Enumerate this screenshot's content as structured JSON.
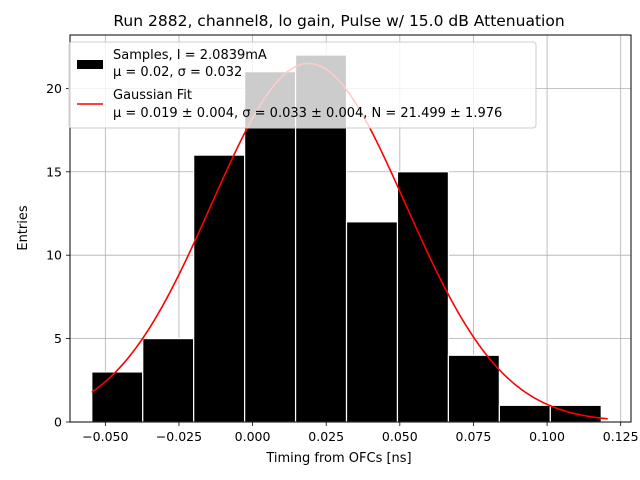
{
  "chart_data": {
    "type": "bar",
    "title": "Run 2882, channel8, lo gain, Pulse w/ 15.0 dB Attenuation",
    "xlabel": "Timing from OFCs [ns]",
    "ylabel": "Entries",
    "xlim": [
      -0.062,
      0.1285
    ],
    "ylim": [
      0,
      23.2
    ],
    "grid": true,
    "legend_position": "top-left",
    "xticks": [
      {
        "value": -0.05,
        "label": "−0.050"
      },
      {
        "value": -0.025,
        "label": "−0.025"
      },
      {
        "value": 0.0,
        "label": "0.000"
      },
      {
        "value": 0.025,
        "label": "0.025"
      },
      {
        "value": 0.05,
        "label": "0.050"
      },
      {
        "value": 0.075,
        "label": "0.075"
      },
      {
        "value": 0.1,
        "label": "0.100"
      },
      {
        "value": 0.125,
        "label": "0.125"
      }
    ],
    "yticks": [
      {
        "value": 0,
        "label": "0"
      },
      {
        "value": 5,
        "label": "5"
      },
      {
        "value": 10,
        "label": "10"
      },
      {
        "value": 15,
        "label": "15"
      },
      {
        "value": 20,
        "label": "20"
      }
    ],
    "histogram": {
      "name": "Samples, I = 2.0839mA",
      "stats_label": "μ = 0.02, σ = 0.032",
      "color": "#000000",
      "edge_color": "#ffffff",
      "bins": [
        {
          "x0": -0.0546,
          "x1": -0.0373,
          "count": 3
        },
        {
          "x0": -0.0373,
          "x1": -0.02,
          "count": 5
        },
        {
          "x0": -0.02,
          "x1": -0.0027,
          "count": 16
        },
        {
          "x0": -0.0027,
          "x1": 0.0146,
          "count": 21
        },
        {
          "x0": 0.0146,
          "x1": 0.0319,
          "count": 22
        },
        {
          "x0": 0.0319,
          "x1": 0.0492,
          "count": 12
        },
        {
          "x0": 0.0492,
          "x1": 0.0665,
          "count": 15
        },
        {
          "x0": 0.0665,
          "x1": 0.0838,
          "count": 4
        },
        {
          "x0": 0.0838,
          "x1": 0.1011,
          "count": 1
        },
        {
          "x0": 0.1011,
          "x1": 0.1184,
          "count": 1
        }
      ]
    },
    "fit": {
      "name": "Gaussian Fit",
      "stats_label": "μ = 0.019 ± 0.004, σ = 0.033 ± 0.004, N = 21.499 ± 1.976",
      "color": "#ff0000",
      "mu": 0.019,
      "sigma": 0.033,
      "N": 21.499,
      "x_range": [
        -0.0546,
        0.1206
      ]
    }
  }
}
